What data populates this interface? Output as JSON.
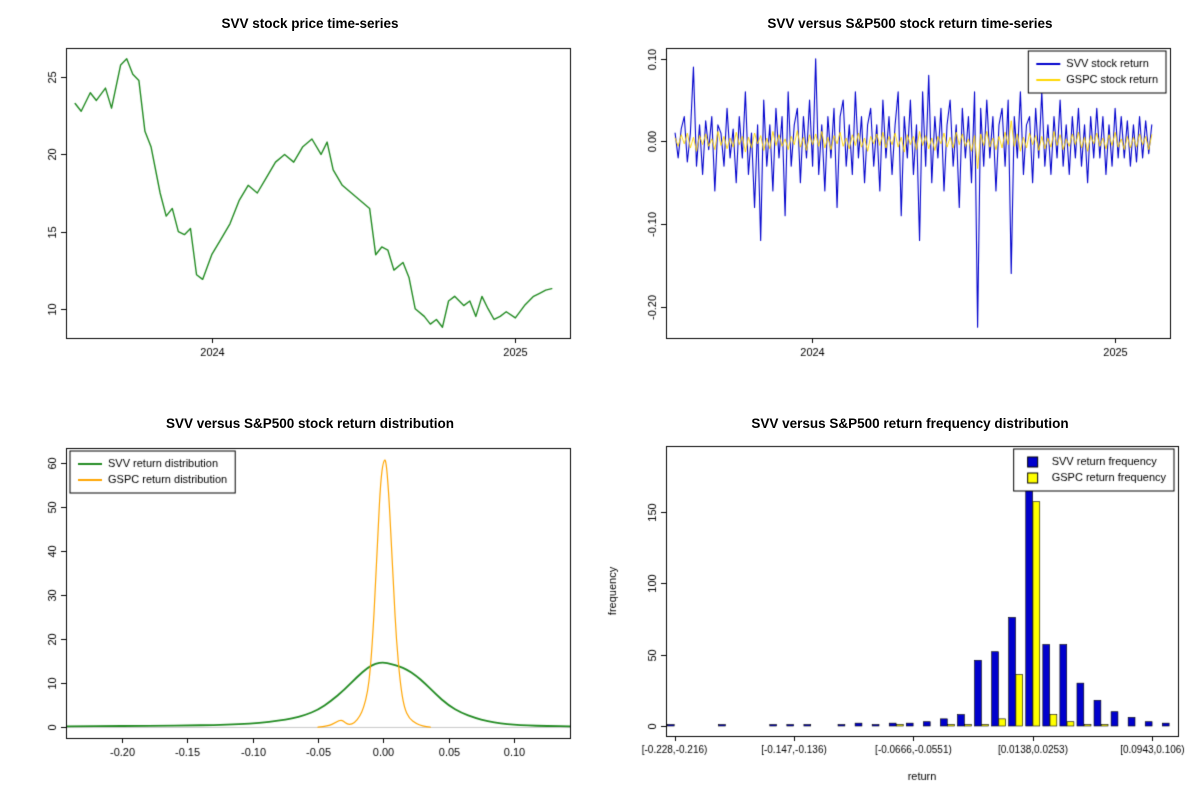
{
  "page": {
    "background": "#ffffff"
  },
  "chart_data": [
    {
      "type": "line",
      "title": "SVV stock price time-series",
      "xlabel": "",
      "ylabel": "",
      "xlim": [
        2023.52,
        2025.18
      ],
      "ylim": [
        8.1,
        26.9
      ],
      "x_ticks": [
        {
          "v": 2024,
          "label": "2024"
        },
        {
          "v": 2025,
          "label": "2025"
        }
      ],
      "y_ticks": [
        {
          "v": 10,
          "label": "10"
        },
        {
          "v": 15,
          "label": "15"
        },
        {
          "v": 20,
          "label": "20"
        },
        {
          "v": 25,
          "label": "25"
        }
      ],
      "series": [
        {
          "name": "SVV price",
          "color": "#228B22",
          "width": 1.4,
          "smooth": false,
          "x": [
            2023.55,
            2023.57,
            2023.6,
            2023.62,
            2023.65,
            2023.67,
            2023.7,
            2023.72,
            2023.74,
            2023.76,
            2023.78,
            2023.8,
            2023.83,
            2023.85,
            2023.87,
            2023.89,
            2023.91,
            2023.93,
            2023.95,
            2023.97,
            2024.0,
            2024.03,
            2024.06,
            2024.09,
            2024.12,
            2024.15,
            2024.18,
            2024.21,
            2024.24,
            2024.27,
            2024.3,
            2024.33,
            2024.36,
            2024.38,
            2024.4,
            2024.43,
            2024.46,
            2024.49,
            2024.52,
            2024.54,
            2024.56,
            2024.58,
            2024.6,
            2024.63,
            2024.65,
            2024.67,
            2024.7,
            2024.72,
            2024.74,
            2024.76,
            2024.78,
            2024.8,
            2024.83,
            2024.85,
            2024.87,
            2024.89,
            2024.91,
            2024.93,
            2024.95,
            2024.97,
            2025.0,
            2025.03,
            2025.06,
            2025.08,
            2025.1,
            2025.12
          ],
          "y": [
            23.3,
            22.8,
            24.0,
            23.5,
            24.3,
            23.0,
            25.8,
            26.2,
            25.2,
            24.8,
            21.5,
            20.5,
            17.5,
            16.0,
            16.5,
            15.0,
            14.8,
            15.2,
            12.2,
            11.9,
            13.5,
            14.5,
            15.5,
            17.0,
            18.0,
            17.5,
            18.5,
            19.5,
            20.0,
            19.5,
            20.5,
            21.0,
            20.0,
            20.8,
            19.0,
            18.0,
            17.5,
            17.0,
            16.5,
            13.5,
            14.0,
            13.8,
            12.5,
            13.0,
            12.0,
            10.0,
            9.5,
            9.0,
            9.3,
            8.8,
            10.5,
            10.8,
            10.2,
            10.5,
            9.5,
            10.8,
            10.0,
            9.3,
            9.5,
            9.8,
            9.4,
            10.2,
            10.8,
            11.0,
            11.2,
            11.3
          ]
        }
      ]
    },
    {
      "type": "line",
      "title": "SVV versus S&P500 stock return time-series",
      "xlabel": "",
      "ylabel": "",
      "xlim": [
        2023.52,
        2025.18
      ],
      "ylim": [
        -0.238,
        0.113
      ],
      "x_range": [
        2023.55,
        2025.12
      ],
      "x_ticks": [
        {
          "v": 2024,
          "label": "2024"
        },
        {
          "v": 2025,
          "label": "2025"
        }
      ],
      "y_ticks": [
        {
          "v": 0.1,
          "label": "0.10"
        },
        {
          "v": 0.0,
          "label": "0.00"
        },
        {
          "v": -0.1,
          "label": "-0.10"
        },
        {
          "v": -0.2,
          "label": "-0.20"
        }
      ],
      "series": [
        {
          "name": "SVV stock return",
          "color": "#0000CD",
          "width": 1.1,
          "smooth": false,
          "y": [
            0.01,
            -0.02,
            0.015,
            0.03,
            -0.025,
            0.01,
            0.09,
            -0.03,
            0.02,
            -0.04,
            0.025,
            -0.01,
            0.03,
            -0.06,
            0.02,
            0.01,
            -0.03,
            0.04,
            -0.02,
            0.015,
            -0.05,
            0.03,
            -0.02,
            0.06,
            -0.04,
            0.01,
            -0.08,
            0.02,
            -0.12,
            0.05,
            -0.03,
            0.02,
            -0.06,
            0.04,
            -0.02,
            0.03,
            -0.09,
            0.06,
            -0.03,
            0.02,
            0.04,
            -0.05,
            0.03,
            -0.02,
            0.05,
            -0.03,
            0.1,
            -0.04,
            0.02,
            -0.06,
            0.03,
            -0.02,
            0.04,
            -0.08,
            0.03,
            0.05,
            -0.03,
            0.02,
            -0.04,
            0.06,
            -0.02,
            0.03,
            -0.05,
            0.02,
            0.04,
            -0.03,
            0.02,
            -0.06,
            0.05,
            -0.02,
            0.03,
            -0.04,
            0.02,
            0.06,
            -0.09,
            0.03,
            -0.02,
            0.05,
            -0.04,
            0.02,
            -0.12,
            0.06,
            -0.03,
            0.08,
            -0.05,
            0.03,
            -0.02,
            0.04,
            -0.06,
            0.02,
            0.05,
            -0.03,
            0.02,
            -0.08,
            0.04,
            -0.02,
            0.03,
            -0.05,
            0.06,
            -0.225,
            0.04,
            -0.03,
            0.05,
            -0.02,
            0.03,
            -0.06,
            0.02,
            0.04,
            -0.03,
            0.05,
            -0.16,
            0.03,
            -0.02,
            0.06,
            -0.04,
            0.02,
            0.03,
            -0.05,
            0.04,
            -0.02,
            0.06,
            -0.03,
            0.02,
            -0.04,
            0.03,
            -0.02,
            0.05,
            -0.03,
            0.02,
            -0.04,
            0.03,
            -0.02,
            0.04,
            -0.03,
            0.02,
            -0.05,
            0.03,
            -0.02,
            0.04,
            -0.02,
            0.03,
            -0.04,
            0.02,
            -0.03,
            0.04,
            -0.02,
            0.03,
            -0.02,
            0.025,
            -0.03,
            0.02,
            -0.025,
            0.03,
            -0.02,
            0.025,
            -0.015,
            0.02
          ]
        },
        {
          "name": "GSPC stock return",
          "color": "#FFD700",
          "width": 0.9,
          "smooth": false,
          "y": [
            0.004,
            -0.006,
            0.008,
            -0.003,
            0.01,
            -0.008,
            0.005,
            -0.012,
            0.007,
            -0.004,
            0.009,
            -0.006,
            0.003,
            -0.01,
            0.012,
            -0.005,
            0.006,
            -0.009,
            0.004,
            -0.007,
            0.011,
            -0.004,
            0.006,
            -0.013,
            0.005,
            -0.008,
            0.01,
            -0.003,
            0.007,
            -0.011,
            0.004,
            -0.009,
            0.012,
            -0.005,
            0.008,
            -0.006,
            0.003,
            -0.01,
            0.006,
            -0.004,
            0.013,
            -0.007,
            0.005,
            -0.011,
            0.008,
            -0.004,
            0.009,
            -0.006,
            0.012,
            -0.008,
            0.005,
            -0.01,
            0.007,
            -0.003,
            0.011,
            -0.006,
            0.004,
            -0.009,
            0.008,
            -0.005,
            0.01,
            -0.007,
            0.004,
            -0.012,
            0.006,
            -0.003,
            0.009,
            -0.005,
            0.011,
            -0.008,
            0.006,
            -0.004,
            0.01,
            -0.007,
            0.005,
            -0.013,
            0.008,
            -0.004,
            0.006,
            -0.01,
            0.012,
            -0.005,
            0.007,
            -0.009,
            0.004,
            -0.011,
            0.006,
            -0.003,
            0.01,
            -0.007,
            0.005,
            -0.008,
            0.011,
            -0.004,
            0.009,
            -0.006,
            0.003,
            -0.012,
            0.007,
            -0.033,
            0.009,
            -0.005,
            0.012,
            -0.007,
            0.004,
            -0.01,
            0.006,
            -0.008,
            0.011,
            -0.004,
            0.025,
            -0.006,
            0.009,
            -0.012,
            0.005,
            -0.008,
            0.01,
            -0.004,
            0.007,
            -0.011,
            0.006,
            -0.009,
            0.004,
            -0.007,
            0.012,
            -0.005,
            0.008,
            -0.01,
            0.003,
            -0.006,
            0.009,
            -0.004,
            0.011,
            -0.008,
            0.005,
            -0.012,
            0.007,
            -0.003,
            0.01,
            -0.006,
            0.004,
            -0.009,
            0.008,
            -0.005,
            0.011,
            -0.007,
            0.003,
            -0.01,
            0.006,
            -0.008,
            0.005,
            -0.007,
            0.009,
            -0.004,
            0.006,
            -0.01,
            0.008
          ]
        }
      ],
      "legend": {
        "position": "top-right",
        "style": "line",
        "items": [
          {
            "label": "SVV stock return",
            "color": "#0000CD"
          },
          {
            "label": "GSPC stock return",
            "color": "#FFD700"
          }
        ]
      }
    },
    {
      "type": "line",
      "title": "SVV versus S&P500 stock return distribution",
      "xlabel": "",
      "ylabel": "",
      "xlim": [
        -0.243,
        0.143
      ],
      "ylim": [
        -2.4,
        63.5
      ],
      "zero_line": true,
      "x_ticks": [
        {
          "v": -0.2,
          "label": "-0.20"
        },
        {
          "v": -0.15,
          "label": "-0.15"
        },
        {
          "v": -0.1,
          "label": "-0.10"
        },
        {
          "v": -0.05,
          "label": "-0.05"
        },
        {
          "v": 0.0,
          "label": "0.00"
        },
        {
          "v": 0.05,
          "label": "0.05"
        },
        {
          "v": 0.1,
          "label": "0.10"
        }
      ],
      "y_ticks": [
        {
          "v": 0,
          "label": "0"
        },
        {
          "v": 10,
          "label": "10"
        },
        {
          "v": 20,
          "label": "20"
        },
        {
          "v": 30,
          "label": "30"
        },
        {
          "v": 40,
          "label": "40"
        },
        {
          "v": 50,
          "label": "50"
        },
        {
          "v": 60,
          "label": "60"
        }
      ],
      "series": [
        {
          "name": "SVV return distribution",
          "color": "#228B22",
          "width": 1.8,
          "smooth": true,
          "x": [
            -0.245,
            -0.23,
            -0.21,
            -0.19,
            -0.17,
            -0.15,
            -0.13,
            -0.11,
            -0.095,
            -0.08,
            -0.07,
            -0.06,
            -0.05,
            -0.04,
            -0.03,
            -0.02,
            -0.012,
            -0.006,
            0,
            0.006,
            0.012,
            0.018,
            0.025,
            0.032,
            0.04,
            0.05,
            0.06,
            0.07,
            0.08,
            0.09,
            0.1,
            0.11,
            0.125,
            0.145
          ],
          "y": [
            0.25,
            0.3,
            0.3,
            0.35,
            0.4,
            0.45,
            0.55,
            0.75,
            1.0,
            1.5,
            2.0,
            2.8,
            4.0,
            6.0,
            8.5,
            11.5,
            13.6,
            14.5,
            14.8,
            14.4,
            13.9,
            13.2,
            11.8,
            10.0,
            7.6,
            5.0,
            3.3,
            2.2,
            1.4,
            0.9,
            0.6,
            0.45,
            0.32,
            0.25
          ]
        },
        {
          "name": "GSPC return distribution",
          "color": "#FFA500",
          "width": 1.2,
          "smooth": true,
          "x": [
            -0.05,
            -0.042,
            -0.036,
            -0.032,
            -0.029,
            -0.026,
            -0.022,
            -0.018,
            -0.015,
            -0.012,
            -0.01,
            -0.008,
            -0.006,
            -0.004,
            -0.002,
            0,
            0.002,
            0.004,
            0.006,
            0.008,
            0.01,
            0.013,
            0.016,
            0.02,
            0.025,
            0.03,
            0.036
          ],
          "y": [
            0.05,
            0.3,
            1.2,
            1.8,
            1.0,
            0.6,
            1.0,
            2.5,
            4.5,
            8.0,
            13.0,
            21.0,
            32.0,
            45.0,
            56.0,
            60.5,
            61.0,
            54.0,
            43.0,
            31.0,
            20.0,
            10.0,
            4.5,
            2.0,
            0.9,
            0.3,
            0.05
          ]
        }
      ],
      "legend": {
        "position": "top-left",
        "style": "line",
        "items": [
          {
            "label": "SVV return distribution",
            "color": "#228B22"
          },
          {
            "label": "GSPC return distribution",
            "color": "#FFA500"
          }
        ]
      }
    },
    {
      "type": "bar-pairs",
      "title": "SVV versus S&P500 return frequency distribution",
      "xlabel": "return",
      "ylabel": "frequency",
      "n_bins": 30,
      "ylim": [
        -7,
        196
      ],
      "y_ticks": [
        {
          "v": 0,
          "label": "0"
        },
        {
          "v": 50,
          "label": "50"
        },
        {
          "v": 100,
          "label": "100"
        },
        {
          "v": 150,
          "label": "150"
        }
      ],
      "x_tick_bins": [
        {
          "bin": 0,
          "label": "[-0.228,-0.216)"
        },
        {
          "bin": 7,
          "label": "[-0.147,-0.136)"
        },
        {
          "bin": 14,
          "label": "[-0.0666,-0.0551)"
        },
        {
          "bin": 21,
          "label": "[0.0138,0.0253)"
        },
        {
          "bin": 28,
          "label": "[0.0943,0.106)"
        }
      ],
      "series": [
        {
          "name": "SVV return frequency",
          "color": "#0000CD",
          "values": [
            1,
            0,
            0,
            1,
            0,
            0,
            1,
            1,
            1,
            0,
            1,
            2,
            1,
            2,
            2,
            3,
            5,
            8,
            46,
            52,
            76,
            190,
            57,
            57,
            30,
            18,
            10,
            6,
            3,
            2
          ]
        },
        {
          "name": "GSPC return frequency",
          "color": "#FFFF00",
          "values": [
            0,
            0,
            0,
            0,
            0,
            0,
            0,
            0,
            0,
            0,
            0,
            0,
            0,
            1,
            0,
            0,
            1,
            1,
            1,
            5,
            36,
            157,
            8,
            3,
            1,
            1,
            0,
            0,
            0,
            0
          ]
        }
      ],
      "legend": {
        "position": "top-right",
        "style": "box",
        "items": [
          {
            "label": "SVV return frequency",
            "color": "#0000CD"
          },
          {
            "label": "GSPC return frequency",
            "color": "#FFFF00"
          }
        ]
      }
    }
  ]
}
